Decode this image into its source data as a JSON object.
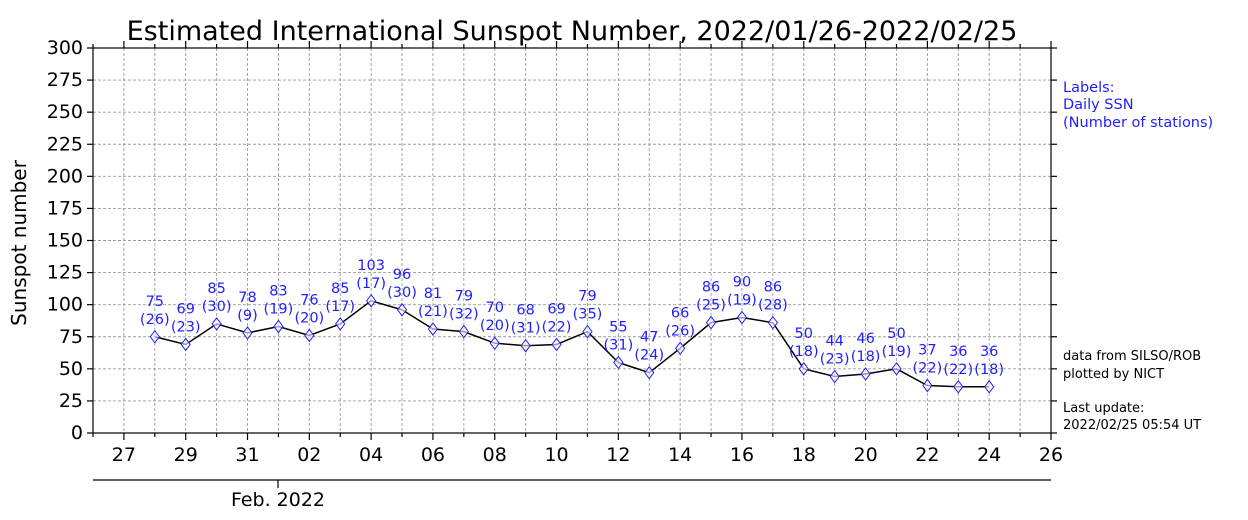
{
  "chart_data": {
    "type": "line",
    "title": "Estimated International Sunspot Number, 2022/01/26-2022/02/25",
    "ylabel": "Sunspot number",
    "xlabel": "",
    "ylim": [
      0,
      300
    ],
    "yticks": [
      0,
      25,
      50,
      75,
      100,
      125,
      150,
      175,
      200,
      225,
      250,
      275,
      300
    ],
    "xlim": [
      "2022-01-26",
      "2022-02-26"
    ],
    "xtick_labels": [
      "27",
      "29",
      "31",
      "02",
      "04",
      "06",
      "08",
      "10",
      "12",
      "14",
      "16",
      "18",
      "20",
      "22",
      "24",
      "26"
    ],
    "month_label": "Feb. 2022",
    "grid": true,
    "line_color": "#000000",
    "marker_color": "#1f1fff",
    "label_color": "#1f1fff",
    "series": [
      {
        "x": [
          "2022-01-28",
          "2022-01-29",
          "2022-01-30",
          "2022-01-31",
          "2022-02-01",
          "2022-02-02",
          "2022-02-03",
          "2022-02-04",
          "2022-02-05",
          "2022-02-06",
          "2022-02-07",
          "2022-02-08",
          "2022-02-09",
          "2022-02-10",
          "2022-02-11",
          "2022-02-12",
          "2022-02-13",
          "2022-02-14",
          "2022-02-15",
          "2022-02-16",
          "2022-02-17",
          "2022-02-18",
          "2022-02-19",
          "2022-02-20",
          "2022-02-21",
          "2022-02-22",
          "2022-02-23",
          "2022-02-24"
        ],
        "values": [
          75,
          69,
          85,
          78,
          83,
          76,
          85,
          103,
          96,
          81,
          79,
          70,
          68,
          69,
          79,
          55,
          47,
          66,
          86,
          90,
          86,
          50,
          44,
          46,
          50,
          37,
          36,
          36
        ],
        "value_labels": [
          "75",
          "69",
          "85",
          "78",
          "83",
          "76",
          "85",
          "103",
          "96",
          "81",
          "79",
          "70",
          "68",
          "69",
          "79",
          "55",
          "47",
          "66",
          "86",
          "90",
          "86",
          "50",
          "44",
          "46",
          "50",
          "37",
          "36",
          "36"
        ],
        "stations": [
          "(26)",
          "(23)",
          "(30)",
          "(9)",
          "(19)",
          "(20)",
          "(17)",
          "(17)",
          "(30)",
          "(21)",
          "(32)",
          "(20)",
          "(31)",
          "(22)",
          "(35)",
          "(31)",
          "(24)",
          "(26)",
          "(25)",
          "(19)",
          "(28)",
          "(18)",
          "(23)",
          "(18)",
          "(19)",
          "(22)",
          "(22)",
          "(18)"
        ]
      }
    ],
    "legend_text": [
      "Labels:",
      "Daily SSN",
      "(Number of stations)"
    ],
    "credit_text": [
      "data from SILSO/ROB",
      "plotted by NICT"
    ],
    "update_text": [
      "Last update:",
      "2022/02/25 05:54 UT"
    ]
  }
}
